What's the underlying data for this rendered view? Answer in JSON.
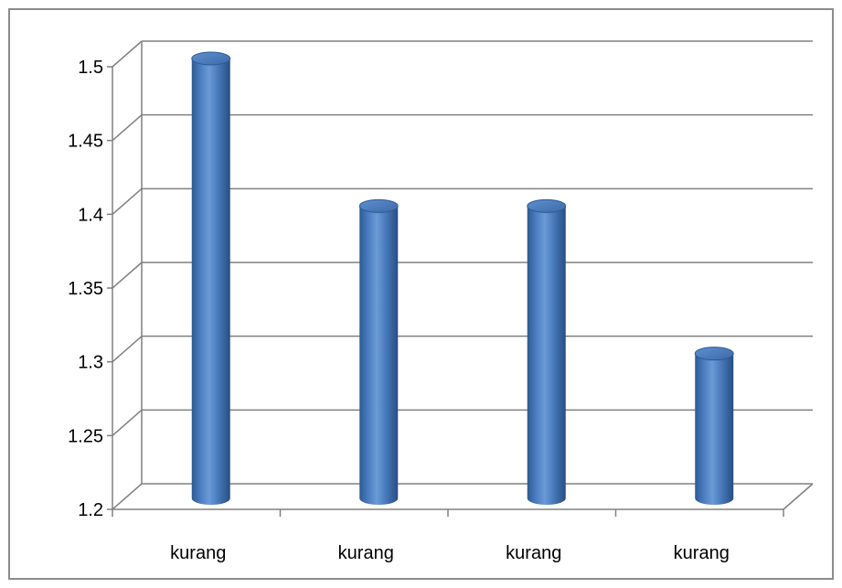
{
  "chart_data": {
    "type": "bar",
    "style": "3d-cylinder",
    "title": "",
    "xlabel": "",
    "ylabel": "",
    "categories": [
      "kurang",
      "kurang",
      "kurang",
      "kurang"
    ],
    "values": [
      1.5,
      1.4,
      1.4,
      1.3
    ],
    "ylim": [
      1.2,
      1.5
    ],
    "yticks": [
      1.2,
      1.25,
      1.3,
      1.35,
      1.4,
      1.45,
      1.5
    ],
    "ytick_labels": [
      "1.2",
      "1.25",
      "1.3",
      "1.35",
      "1.4",
      "1.45",
      "1.5"
    ],
    "grid": true,
    "legend": "none",
    "colors": {
      "bar": "#4f81bd",
      "grid": "#808080"
    }
  }
}
